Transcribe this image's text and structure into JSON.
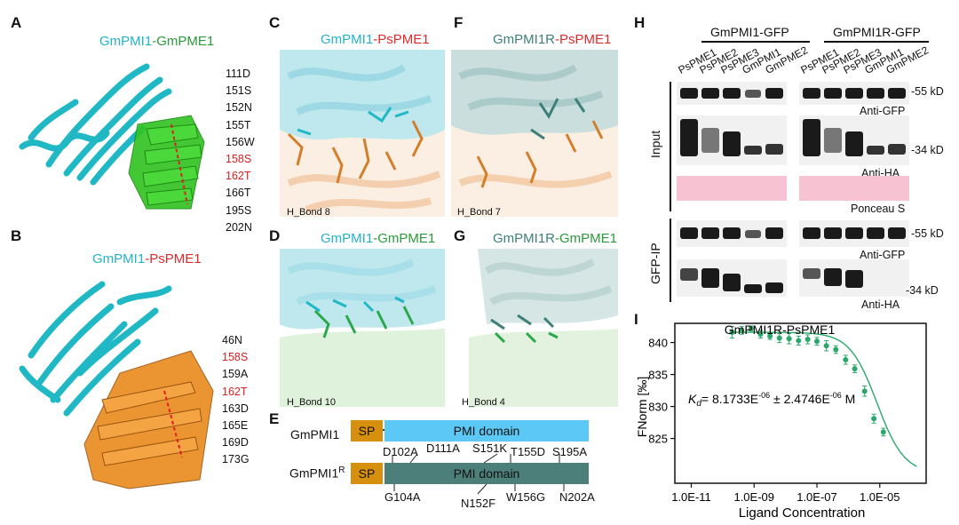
{
  "panels": {
    "A": {
      "letter": "A",
      "title_part1": "GmPMI1",
      "title_sep": "-",
      "title_part2": "GmPME1",
      "residues": [
        "111D",
        "151S",
        "152N",
        "155T",
        "156W",
        "158S",
        "162T",
        "166T",
        "195S",
        "202N"
      ]
    },
    "B": {
      "letter": "B",
      "title_part1": "GmPMI1",
      "title_sep": "-",
      "title_part2": "PsPME1",
      "residues": [
        "46N",
        "158S",
        "159A",
        "162T",
        "163D",
        "165E",
        "169D",
        "173G"
      ]
    },
    "C": {
      "letter": "C",
      "title_part1": "GmPMI1",
      "title_sep": "-",
      "title_part2": "PsPME1",
      "hbond": "H_Bond 8"
    },
    "D": {
      "letter": "D",
      "title_part1": "GmPMI1",
      "title_sep": "-",
      "title_part2": "GmPME1",
      "hbond": "H_Bond 10"
    },
    "F": {
      "letter": "F",
      "title_part1": "GmPMI1R",
      "title_sep": "-",
      "title_part2": "PsPME1",
      "hbond": "H_Bond 7"
    },
    "G": {
      "letter": "G",
      "title_part1": "GmPMI1R",
      "title_sep": "-",
      "title_part2": "GmPME1",
      "hbond": "H_Bond 4"
    },
    "E": {
      "letter": "E",
      "row1_name": "GmPMI1",
      "row2_name": "GmPMI1",
      "row2_sup": "R",
      "sp": "SP",
      "domain": "PMI domain",
      "mut_top": [
        "D102A",
        "D111A",
        "S151K",
        "T155D",
        "S195A"
      ],
      "mut_bottom": [
        "G104A",
        "N152F",
        "W156G",
        "N202A"
      ]
    },
    "H": {
      "letter": "H",
      "group1": "GmPMI1-GFP",
      "group2": "GmPMI1R-GFP",
      "lanes": [
        "PsPME1",
        "PsPME2",
        "PsPME3",
        "GmPMI1",
        "GmPME2",
        "PsPME1",
        "PsPME2",
        "PsPME3",
        "GmPMI1",
        "GmPME2"
      ],
      "input_label": "Input",
      "ip_label": "GFP-IP",
      "anti_gfp": "Anti-GFP",
      "anti_ha": "Anti-HA",
      "ponceau": "Ponceau S",
      "mw55": "-55 kD",
      "mw34": "-34 kD"
    },
    "I": {
      "letter": "I"
    }
  },
  "chart_data": {
    "type": "scatter",
    "title": "GmPMI1R-PsPME1",
    "xlabel": "Ligand Concentration",
    "ylabel": "FNorm [‰]",
    "xscale": "log",
    "xlim": [
      3e-12,
      0.0003
    ],
    "ylim": [
      818,
      843
    ],
    "xticks": [
      "1.0E-11",
      "1.0E-09",
      "1.0E-07",
      "1.0E-05"
    ],
    "yticks": [
      "825",
      "830",
      "835",
      "840"
    ],
    "annotation": "K",
    "annotation_sub": "d",
    "annotation_value": "= 8.1733E",
    "annotation_exp1": "-06",
    "annotation_pm": " ± 2.4746E",
    "annotation_exp2": "-06",
    "annotation_unit": " M",
    "points": [
      {
        "x": 2e-10,
        "y": 841.6,
        "err": 0.9
      },
      {
        "x": 4e-10,
        "y": 841.9,
        "err": 0.6
      },
      {
        "x": 8e-10,
        "y": 842.2,
        "err": 0.4
      },
      {
        "x": 1.6e-09,
        "y": 841.3,
        "err": 0.6
      },
      {
        "x": 3.2e-09,
        "y": 841.0,
        "err": 0.5
      },
      {
        "x": 6.4e-09,
        "y": 840.7,
        "err": 0.7
      },
      {
        "x": 1.3e-08,
        "y": 840.6,
        "err": 0.8
      },
      {
        "x": 2.6e-08,
        "y": 840.3,
        "err": 0.7
      },
      {
        "x": 5.1e-08,
        "y": 840.5,
        "err": 0.7
      },
      {
        "x": 1e-07,
        "y": 840.2,
        "err": 0.6
      },
      {
        "x": 2e-07,
        "y": 839.5,
        "err": 0.8
      },
      {
        "x": 4e-07,
        "y": 838.9,
        "err": 0.6
      },
      {
        "x": 8.2e-07,
        "y": 837.3,
        "err": 0.7
      },
      {
        "x": 1.6e-06,
        "y": 835.9,
        "err": 0.6
      },
      {
        "x": 3.3e-06,
        "y": 832.4,
        "err": 0.8
      },
      {
        "x": 6.5e-06,
        "y": 828.1,
        "err": 0.7
      },
      {
        "x": 1.3e-05,
        "y": 826.0,
        "err": 0.6
      }
    ],
    "fit": {
      "top": 841.6,
      "bottom": 819.5,
      "kd": 8.1733e-06
    }
  }
}
